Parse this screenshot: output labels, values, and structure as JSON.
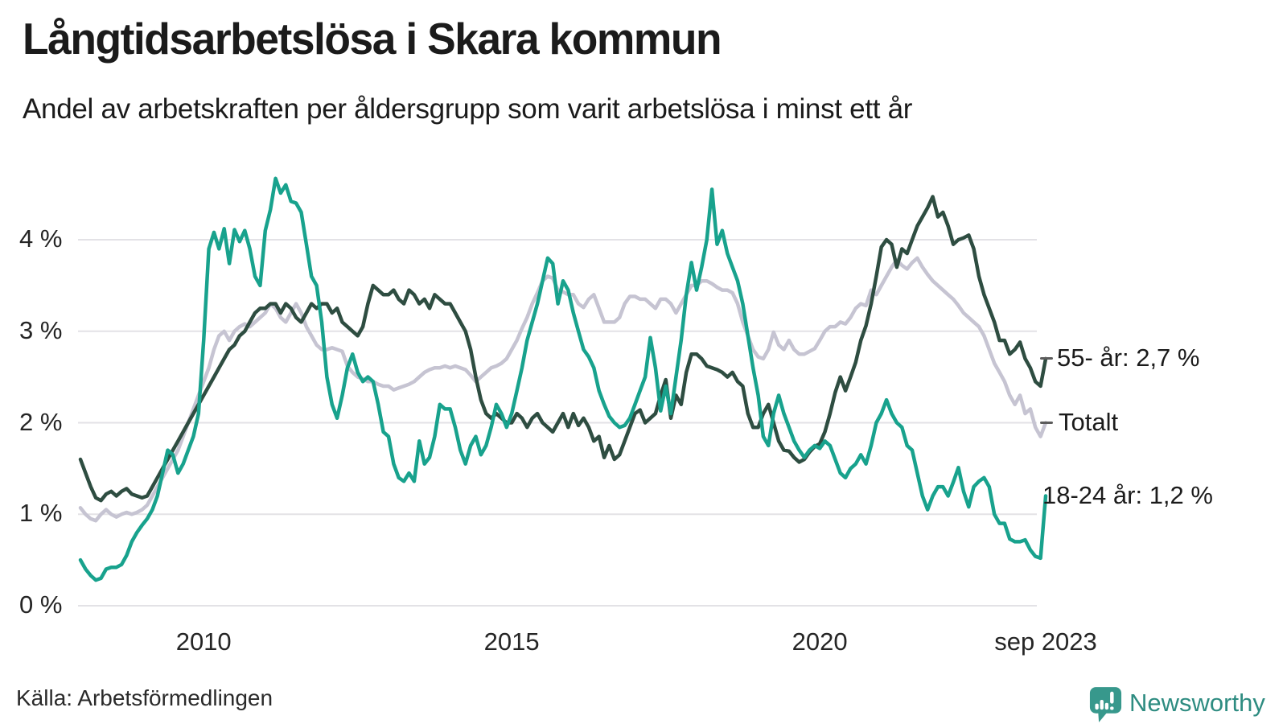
{
  "header": {
    "title": "Långtidsarbetslösa i Skara kommun",
    "subtitle": "Andel av arbetskraften per åldersgrupp som varit arbetslösa i minst ett år"
  },
  "footer": {
    "source": "Källa: Arbetsförmedlingen",
    "brand": "Newsworthy"
  },
  "colors": {
    "series_55": "#2e4d41",
    "series_totalt": "#c6c4d2",
    "series_18_24": "#18a28d",
    "gridline": "#e3e2e6",
    "text": "#1b1b1b",
    "brand_teal": "#2e8c81",
    "logo_teal": "#37988c"
  },
  "chart_data": {
    "type": "line",
    "title": "Långtidsarbetslösa i Skara kommun",
    "subtitle": "Andel av arbetskraften per åldersgrupp som varit arbetslösa i minst ett år",
    "xlabel": "",
    "ylabel": "",
    "x_start": "2008-01",
    "x_end": "2023-09",
    "x_frequency": "monthly",
    "ylim": [
      0,
      4.8
    ],
    "grid": "horizontal",
    "legend_position": "right-edge-labels",
    "y_ticks": [
      {
        "label": "0 %",
        "value": 0
      },
      {
        "label": "1 %",
        "value": 1
      },
      {
        "label": "2 %",
        "value": 2
      },
      {
        "label": "3 %",
        "value": 3
      },
      {
        "label": "4 %",
        "value": 4
      }
    ],
    "x_ticks": [
      {
        "label": "2010",
        "month_index": 24
      },
      {
        "label": "2015",
        "month_index": 84
      },
      {
        "label": "2020",
        "month_index": 144
      },
      {
        "label": "sep 2023",
        "month_index": 188
      }
    ],
    "series": [
      {
        "name": "55- år",
        "label": "55- år: 2,7 %",
        "final_value": 2.7,
        "color": "#2e4d41",
        "connector": true,
        "values": [
          1.6,
          1.45,
          1.3,
          1.18,
          1.15,
          1.22,
          1.25,
          1.2,
          1.25,
          1.28,
          1.22,
          1.2,
          1.18,
          1.2,
          1.3,
          1.4,
          1.5,
          1.6,
          1.7,
          1.8,
          1.9,
          2.0,
          2.1,
          2.2,
          2.3,
          2.4,
          2.5,
          2.6,
          2.7,
          2.8,
          2.85,
          2.95,
          3.0,
          3.1,
          3.2,
          3.25,
          3.25,
          3.3,
          3.3,
          3.2,
          3.3,
          3.25,
          3.15,
          3.1,
          3.2,
          3.3,
          3.25,
          3.3,
          3.3,
          3.2,
          3.25,
          3.1,
          3.05,
          3.0,
          2.95,
          3.05,
          3.3,
          3.5,
          3.45,
          3.4,
          3.4,
          3.45,
          3.35,
          3.3,
          3.45,
          3.4,
          3.3,
          3.35,
          3.25,
          3.4,
          3.35,
          3.3,
          3.3,
          3.2,
          3.1,
          3.0,
          2.8,
          2.5,
          2.25,
          2.1,
          2.05,
          2.1,
          2.05,
          2.0,
          2.0,
          2.1,
          2.05,
          1.95,
          2.05,
          2.1,
          2.0,
          1.95,
          1.9,
          2.0,
          2.1,
          1.95,
          2.1,
          1.97,
          2.05,
          1.95,
          1.8,
          1.85,
          1.62,
          1.75,
          1.6,
          1.65,
          1.8,
          1.95,
          2.1,
          2.14,
          2.0,
          2.05,
          2.1,
          2.3,
          2.47,
          2.05,
          2.3,
          2.2,
          2.55,
          2.75,
          2.75,
          2.7,
          2.62,
          2.6,
          2.58,
          2.55,
          2.5,
          2.55,
          2.45,
          2.4,
          2.1,
          1.95,
          1.95,
          2.1,
          2.2,
          2.0,
          1.8,
          1.7,
          1.69,
          1.62,
          1.57,
          1.6,
          1.68,
          1.74,
          1.77,
          1.9,
          2.1,
          2.33,
          2.5,
          2.35,
          2.5,
          2.66,
          2.9,
          3.06,
          3.3,
          3.6,
          3.92,
          4.0,
          3.95,
          3.7,
          3.9,
          3.85,
          4.0,
          4.15,
          4.25,
          4.35,
          4.47,
          4.25,
          4.3,
          4.15,
          3.95,
          4.0,
          4.02,
          4.05,
          3.9,
          3.6,
          3.4,
          3.25,
          3.1,
          2.9,
          2.9,
          2.75,
          2.8,
          2.88,
          2.7,
          2.6,
          2.45,
          2.4,
          2.7
        ]
      },
      {
        "name": "Totalt",
        "label": "Totalt",
        "final_value": 2.0,
        "color": "#c6c4d2",
        "connector": true,
        "values": [
          1.07,
          1.0,
          0.95,
          0.93,
          1.0,
          1.05,
          1.0,
          0.97,
          1.0,
          1.02,
          1.0,
          1.02,
          1.05,
          1.1,
          1.2,
          1.3,
          1.4,
          1.5,
          1.6,
          1.7,
          1.85,
          2.0,
          2.15,
          2.3,
          2.45,
          2.6,
          2.8,
          2.95,
          3.0,
          2.9,
          3.0,
          3.05,
          3.08,
          3.05,
          3.1,
          3.15,
          3.2,
          3.3,
          3.25,
          3.15,
          3.1,
          3.2,
          3.3,
          3.2,
          3.05,
          2.95,
          2.85,
          2.8,
          2.8,
          2.82,
          2.8,
          2.78,
          2.62,
          2.55,
          2.5,
          2.48,
          2.45,
          2.45,
          2.42,
          2.4,
          2.4,
          2.36,
          2.38,
          2.4,
          2.42,
          2.45,
          2.5,
          2.55,
          2.58,
          2.6,
          2.6,
          2.62,
          2.6,
          2.62,
          2.6,
          2.58,
          2.52,
          2.45,
          2.5,
          2.55,
          2.6,
          2.62,
          2.65,
          2.7,
          2.8,
          2.9,
          3.03,
          3.15,
          3.3,
          3.42,
          3.55,
          3.6,
          3.58,
          3.45,
          3.43,
          3.4,
          3.4,
          3.3,
          3.26,
          3.35,
          3.4,
          3.25,
          3.1,
          3.1,
          3.1,
          3.15,
          3.3,
          3.38,
          3.38,
          3.35,
          3.35,
          3.3,
          3.25,
          3.35,
          3.35,
          3.3,
          3.2,
          3.3,
          3.4,
          3.5,
          3.5,
          3.55,
          3.55,
          3.52,
          3.48,
          3.45,
          3.45,
          3.42,
          3.3,
          3.1,
          2.95,
          2.8,
          2.72,
          2.7,
          2.8,
          2.99,
          2.85,
          2.8,
          2.9,
          2.8,
          2.75,
          2.75,
          2.78,
          2.81,
          2.9,
          3.0,
          3.05,
          3.05,
          3.1,
          3.08,
          3.15,
          3.25,
          3.3,
          3.28,
          3.45,
          3.4,
          3.5,
          3.6,
          3.7,
          3.78,
          3.72,
          3.68,
          3.75,
          3.8,
          3.7,
          3.62,
          3.55,
          3.5,
          3.45,
          3.4,
          3.35,
          3.28,
          3.2,
          3.15,
          3.1,
          3.05,
          2.95,
          2.8,
          2.65,
          2.55,
          2.45,
          2.3,
          2.2,
          2.3,
          2.1,
          2.15,
          1.95,
          1.85,
          2.0
        ]
      },
      {
        "name": "18-24 år",
        "label": "18-24 år: 1,2 %",
        "final_value": 1.2,
        "color": "#18a28d",
        "connector": false,
        "values": [
          0.5,
          0.4,
          0.33,
          0.28,
          0.3,
          0.4,
          0.42,
          0.42,
          0.45,
          0.55,
          0.7,
          0.8,
          0.88,
          0.95,
          1.05,
          1.2,
          1.45,
          1.7,
          1.65,
          1.45,
          1.55,
          1.7,
          1.85,
          2.1,
          2.9,
          3.9,
          4.08,
          3.9,
          4.12,
          3.74,
          4.11,
          3.98,
          4.1,
          3.9,
          3.6,
          3.5,
          4.1,
          4.33,
          4.67,
          4.51,
          4.6,
          4.42,
          4.4,
          4.3,
          3.95,
          3.6,
          3.5,
          3.1,
          2.5,
          2.2,
          2.05,
          2.3,
          2.6,
          2.75,
          2.55,
          2.45,
          2.5,
          2.45,
          2.2,
          1.9,
          1.85,
          1.55,
          1.4,
          1.36,
          1.45,
          1.36,
          1.8,
          1.55,
          1.62,
          1.85,
          2.2,
          2.15,
          2.15,
          1.95,
          1.7,
          1.55,
          1.75,
          1.85,
          1.65,
          1.75,
          1.95,
          2.2,
          2.1,
          1.95,
          2.1,
          2.35,
          2.6,
          2.9,
          3.1,
          3.3,
          3.55,
          3.8,
          3.74,
          3.3,
          3.55,
          3.45,
          3.2,
          3.0,
          2.8,
          2.72,
          2.6,
          2.35,
          2.2,
          2.07,
          2.0,
          1.95,
          1.97,
          2.05,
          2.2,
          2.35,
          2.5,
          2.93,
          2.6,
          2.13,
          2.4,
          2.1,
          2.5,
          2.9,
          3.4,
          3.75,
          3.45,
          3.7,
          4.0,
          4.55,
          3.95,
          4.1,
          3.85,
          3.7,
          3.55,
          3.3,
          2.95,
          2.6,
          2.3,
          1.85,
          1.75,
          2.1,
          2.3,
          2.1,
          1.95,
          1.8,
          1.7,
          1.62,
          1.7,
          1.75,
          1.72,
          1.8,
          1.75,
          1.6,
          1.45,
          1.4,
          1.5,
          1.55,
          1.65,
          1.55,
          1.75,
          2.0,
          2.1,
          2.25,
          2.1,
          2.0,
          1.95,
          1.75,
          1.7,
          1.45,
          1.2,
          1.05,
          1.2,
          1.3,
          1.3,
          1.2,
          1.35,
          1.51,
          1.25,
          1.08,
          1.3,
          1.36,
          1.4,
          1.3,
          1.0,
          0.9,
          0.9,
          0.73,
          0.7,
          0.7,
          0.72,
          0.61,
          0.54,
          0.52,
          1.2
        ]
      }
    ]
  }
}
